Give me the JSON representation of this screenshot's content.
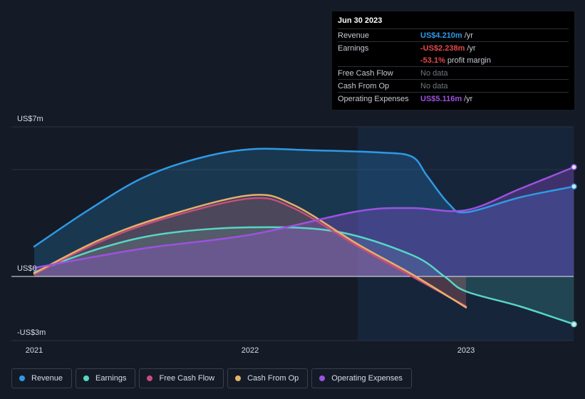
{
  "chart_data": {
    "type": "area",
    "x_ticks": [
      "2021",
      "2022",
      "2023"
    ],
    "y_ticks": [
      "US$7m",
      "US$0",
      "-US$3m"
    ],
    "ylim": [
      -3,
      7
    ],
    "series": [
      {
        "name": "Revenue",
        "color": "#2e9ae6",
        "points": [
          [
            2021.0,
            1.4
          ],
          [
            2021.25,
            3.1
          ],
          [
            2021.5,
            4.6
          ],
          [
            2021.75,
            5.5
          ],
          [
            2022.0,
            5.95
          ],
          [
            2022.3,
            5.9
          ],
          [
            2022.6,
            5.8
          ],
          [
            2022.75,
            5.6
          ],
          [
            2022.82,
            4.7
          ],
          [
            2022.92,
            3.4
          ],
          [
            2023.0,
            3.0
          ],
          [
            2023.25,
            3.7
          ],
          [
            2023.5,
            4.21
          ]
        ]
      },
      {
        "name": "Earnings",
        "color": "#57d6c6",
        "points": [
          [
            2021.0,
            0.2
          ],
          [
            2021.3,
            1.3
          ],
          [
            2021.6,
            2.0
          ],
          [
            2022.0,
            2.3
          ],
          [
            2022.4,
            2.1
          ],
          [
            2022.75,
            1.0
          ],
          [
            2022.9,
            0.0
          ],
          [
            2023.0,
            -0.7
          ],
          [
            2023.25,
            -1.4
          ],
          [
            2023.5,
            -2.238
          ]
        ]
      },
      {
        "name": "Free Cash Flow",
        "color": "#c84d7c",
        "points": [
          [
            2021.0,
            0.1
          ],
          [
            2021.3,
            1.6
          ],
          [
            2021.6,
            2.7
          ],
          [
            2022.0,
            3.65
          ],
          [
            2022.2,
            3.2
          ],
          [
            2022.5,
            1.4
          ],
          [
            2022.75,
            0.0
          ],
          [
            2023.0,
            -1.4
          ]
        ]
      },
      {
        "name": "Cash From Op",
        "color": "#e6b06a",
        "points": [
          [
            2021.0,
            0.15
          ],
          [
            2021.3,
            1.7
          ],
          [
            2021.6,
            2.8
          ],
          [
            2022.0,
            3.8
          ],
          [
            2022.2,
            3.35
          ],
          [
            2022.5,
            1.5
          ],
          [
            2022.75,
            0.1
          ],
          [
            2023.0,
            -1.45
          ]
        ]
      },
      {
        "name": "Operating Expenses",
        "color": "#9c52e0",
        "points": [
          [
            2021.0,
            0.4
          ],
          [
            2021.5,
            1.3
          ],
          [
            2022.0,
            1.95
          ],
          [
            2022.5,
            3.05
          ],
          [
            2022.75,
            3.2
          ],
          [
            2023.0,
            3.1
          ],
          [
            2023.25,
            4.1
          ],
          [
            2023.5,
            5.116
          ]
        ]
      }
    ]
  },
  "tooltip": {
    "date": "Jun 30 2023",
    "rows": [
      {
        "label": "Revenue",
        "value": "US$4.210m",
        "unit": "/yr",
        "color": "#2e9ae6"
      },
      {
        "label": "Earnings",
        "value": "-US$2.238m",
        "unit": "/yr",
        "color": "#e5484d"
      },
      {
        "label": "",
        "value": "-53.1%",
        "unit": "profit margin",
        "color": "#e5484d"
      },
      {
        "label": "Free Cash Flow",
        "value": "No data",
        "unit": "",
        "color": ""
      },
      {
        "label": "Cash From Op",
        "value": "No data",
        "unit": "",
        "color": ""
      },
      {
        "label": "Operating Expenses",
        "value": "US$5.116m",
        "unit": "/yr",
        "color": "#9c52e0"
      }
    ]
  },
  "legend": [
    {
      "label": "Revenue",
      "color": "#2e9ae6"
    },
    {
      "label": "Earnings",
      "color": "#57d6c6"
    },
    {
      "label": "Free Cash Flow",
      "color": "#c84d7c"
    },
    {
      "label": "Cash From Op",
      "color": "#e6b06a"
    },
    {
      "label": "Operating Expenses",
      "color": "#9c52e0"
    }
  ]
}
